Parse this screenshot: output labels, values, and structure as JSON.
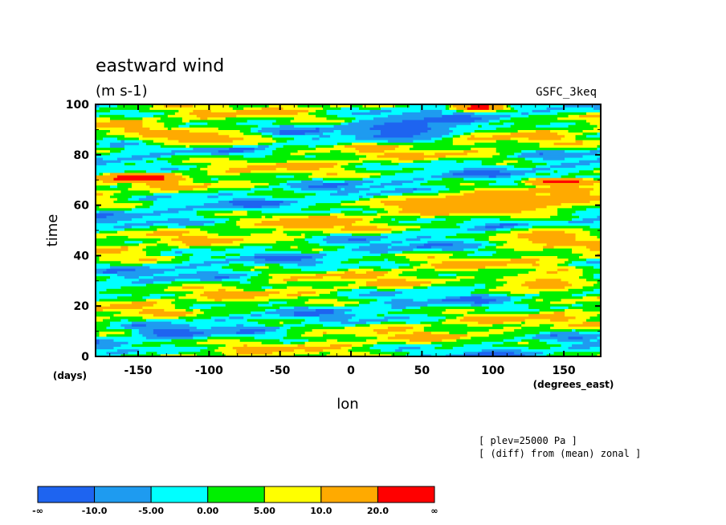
{
  "chart_data": {
    "type": "heatmap",
    "title": "eastward wind",
    "subtitle": "(m s-1)",
    "model_label": "GSFC_3keq",
    "xlabel": "lon",
    "xunits": "(degrees_east)",
    "ylabel": "time",
    "yunits": "(days)",
    "xlim": [
      -180,
      176
    ],
    "ylim": [
      0,
      100
    ],
    "x_ticks": [
      -150,
      -100,
      -50,
      0,
      50,
      100,
      150
    ],
    "y_ticks": [
      0,
      20,
      40,
      60,
      80,
      100
    ],
    "annotations": [
      "[ plev=25000 Pa ]",
      "[ (diff) from (mean) zonal ]"
    ],
    "colorbar": {
      "labels": [
        "-∞",
        "-10.0",
        "-5.00",
        "0.00",
        "5.00",
        "10.0",
        "20.0",
        "∞"
      ],
      "colors": [
        "#1e64f0",
        "#1e9bf0",
        "#00ffff",
        "#00f000",
        "#ffff00",
        "#ffaa00",
        "#ff0000"
      ]
    },
    "features": [
      {
        "description": "strong positive streak",
        "lon": [
          -180,
          -120
        ],
        "time": [
          69,
          73
        ],
        "value": 22
      },
      {
        "description": "strong positive streak",
        "lon": [
          120,
          176
        ],
        "time": [
          68,
          71
        ],
        "value": 22
      },
      {
        "description": "strong positive streak",
        "lon": [
          70,
          110
        ],
        "time": [
          98,
          100
        ],
        "value": 22
      },
      {
        "description": "positive band",
        "lon": [
          -150,
          -60
        ],
        "time": [
          83,
          90
        ],
        "value": 12
      },
      {
        "description": "positive band",
        "lon": [
          -60,
          0
        ],
        "time": [
          50,
          56
        ],
        "value": 12
      },
      {
        "description": "positive band",
        "lon": [
          20,
          176
        ],
        "time": [
          56,
          66
        ],
        "value": 12
      },
      {
        "description": "positive band",
        "lon": [
          100,
          176
        ],
        "time": [
          44,
          52
        ],
        "value": 12
      },
      {
        "description": "positive band",
        "lon": [
          100,
          176
        ],
        "time": [
          25,
          33
        ],
        "value": 12
      },
      {
        "description": "negative region",
        "lon": [
          0,
          80
        ],
        "time": [
          85,
          96
        ],
        "value": -11
      },
      {
        "description": "negative region",
        "lon": [
          -150,
          -100
        ],
        "time": [
          7,
          12
        ],
        "value": -11
      }
    ]
  }
}
